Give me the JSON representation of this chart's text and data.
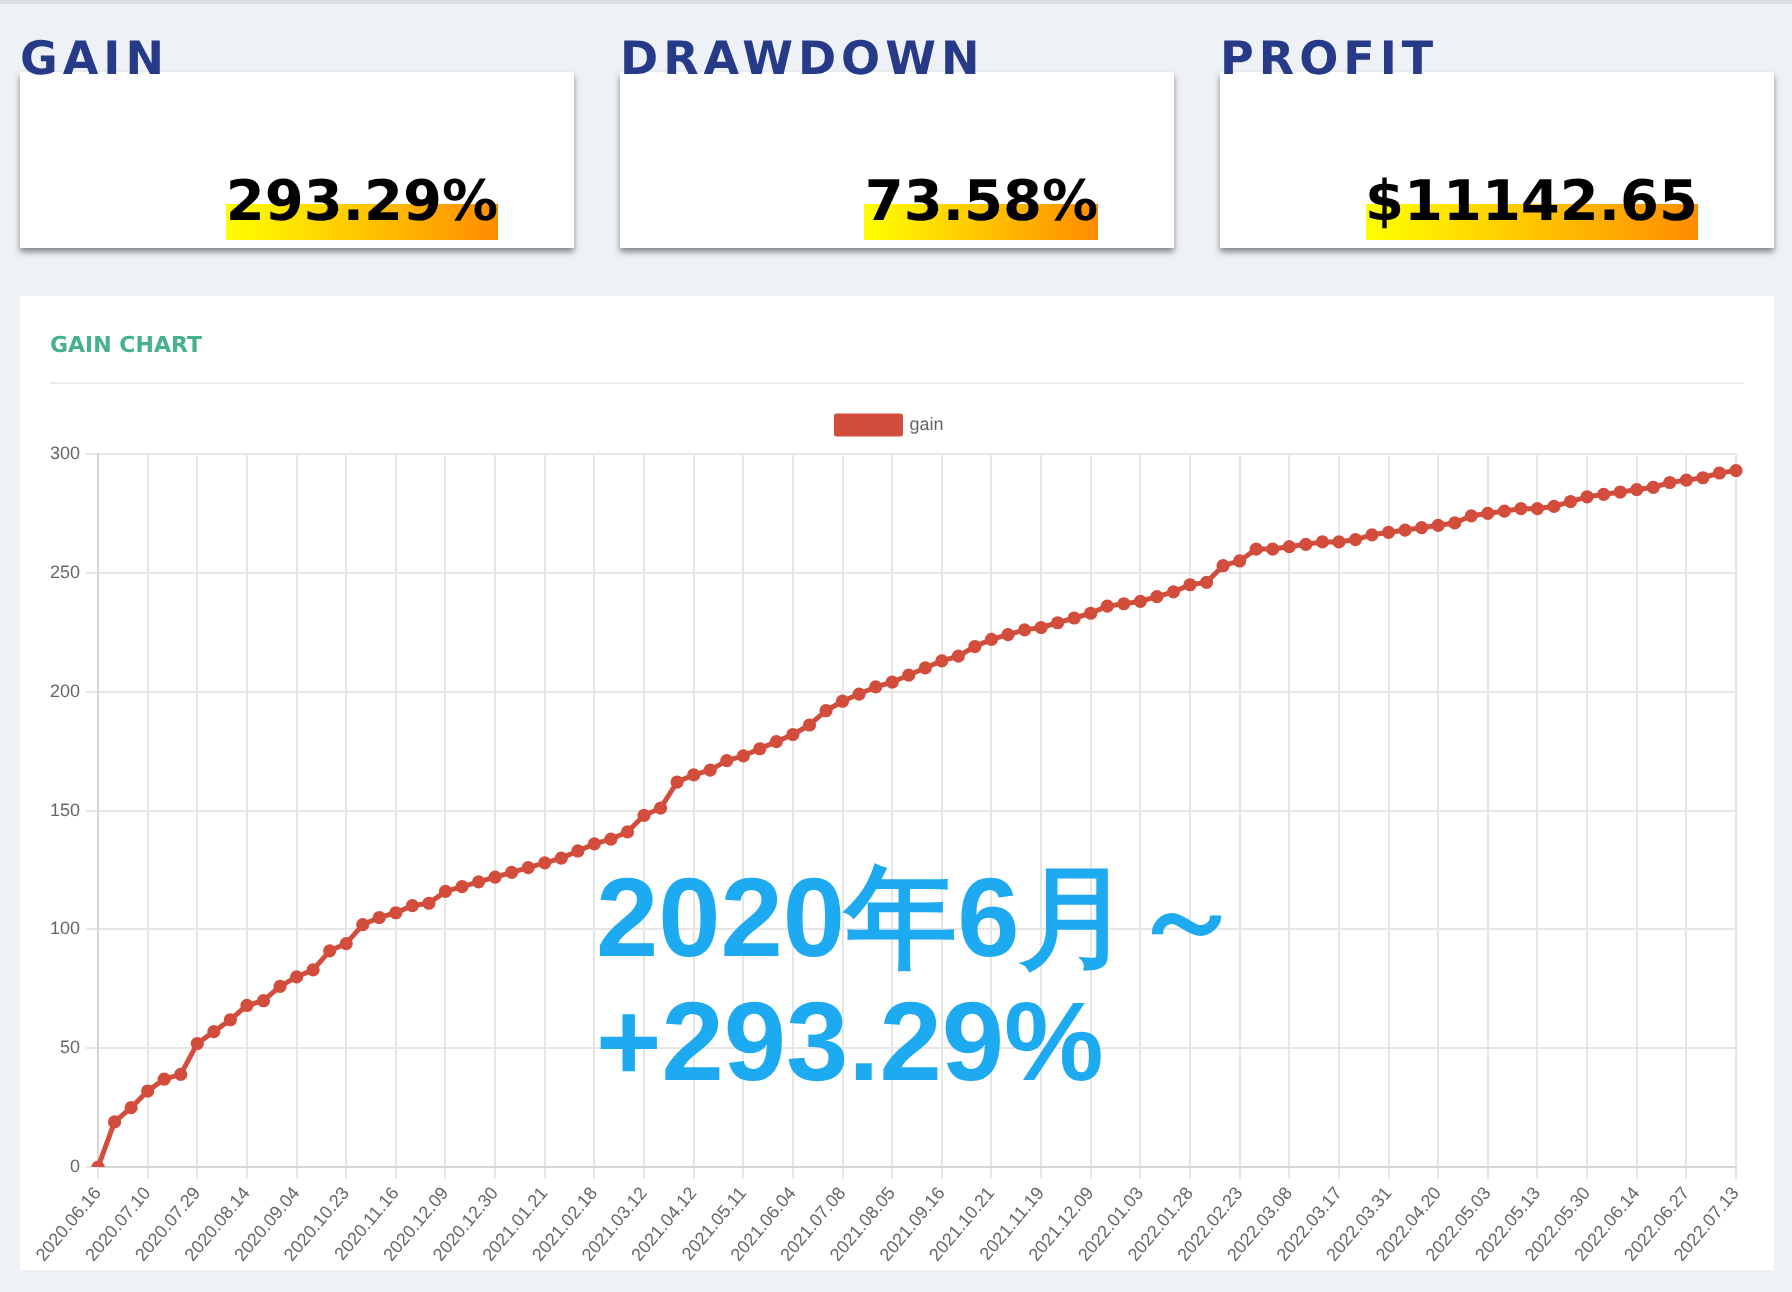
{
  "chart_data": [
    {
      "type": "other",
      "title": "GAIN",
      "annotations": [
        "293.29%"
      ]
    },
    {
      "type": "other",
      "title": "DRAWDOWN",
      "annotations": [
        "73.58%"
      ]
    },
    {
      "type": "other",
      "title": "PROFIT",
      "annotations": [
        "$11142.65"
      ]
    },
    {
      "type": "line",
      "title": "GAIN CHART",
      "categories": [
        "2020.06.16",
        null,
        null,
        "2020.07.10",
        null,
        null,
        "2020.07.29",
        null,
        null,
        "2020.08.14",
        null,
        null,
        "2020.09.04",
        null,
        null,
        "2020.10.23",
        null,
        null,
        "2020.11.16",
        null,
        null,
        "2020.12.09",
        null,
        null,
        "2020.12.30",
        null,
        null,
        "2021.01.21",
        null,
        null,
        "2021.02.18",
        null,
        null,
        "2021.03.12",
        null,
        null,
        "2021.04.12",
        null,
        null,
        "2021.05.11",
        null,
        null,
        "2021.06.04",
        null,
        null,
        "2021.07.08",
        null,
        null,
        "2021.08.05",
        null,
        null,
        "2021.09.16",
        null,
        null,
        "2021.10.21",
        null,
        null,
        "2021.11.19",
        null,
        null,
        "2021.12.09",
        null,
        null,
        "2022.01.03",
        null,
        null,
        "2022.01.28",
        null,
        null,
        "2022.02.23",
        null,
        null,
        "2022.03.08",
        null,
        null,
        "2022.03.17",
        null,
        null,
        "2022.03.31",
        null,
        null,
        "2022.04.20",
        null,
        null,
        "2022.05.03",
        null,
        null,
        "2022.05.13",
        null,
        null,
        "2022.05.30",
        null,
        null,
        "2022.06.14",
        null,
        null,
        "2022.06.27",
        null,
        null,
        "2022.07.13"
      ],
      "series": [
        {
          "name": "gain",
          "color": "#d24d3c",
          "values": [
            0,
            19,
            25,
            32,
            37,
            39,
            52,
            57,
            62,
            68,
            70,
            76,
            80,
            83,
            91,
            94,
            102,
            105,
            107,
            110,
            111,
            116,
            118,
            120,
            122,
            124,
            126,
            128,
            130,
            133,
            136,
            138,
            141,
            148,
            151,
            162,
            165,
            167,
            171,
            173,
            176,
            179,
            182,
            186,
            192,
            196,
            199,
            202,
            204,
            207,
            210,
            213,
            215,
            219,
            222,
            224,
            226,
            227,
            229,
            231,
            233,
            236,
            237,
            238,
            240,
            242,
            245,
            246,
            253,
            255,
            260,
            260,
            261,
            262,
            263,
            263,
            264,
            266,
            267,
            268,
            269,
            270,
            271,
            274,
            275,
            276,
            277,
            277,
            278,
            280,
            282,
            283,
            284,
            285,
            286,
            288,
            289,
            290,
            292,
            293
          ]
        }
      ],
      "ylim": [
        0,
        300
      ],
      "yticks": [
        0,
        50,
        100,
        150,
        200,
        250,
        300
      ],
      "grid": true,
      "legend": "top",
      "marker": "circle",
      "annotations": [
        "2020年6月～",
        "+293.29%"
      ]
    }
  ]
}
